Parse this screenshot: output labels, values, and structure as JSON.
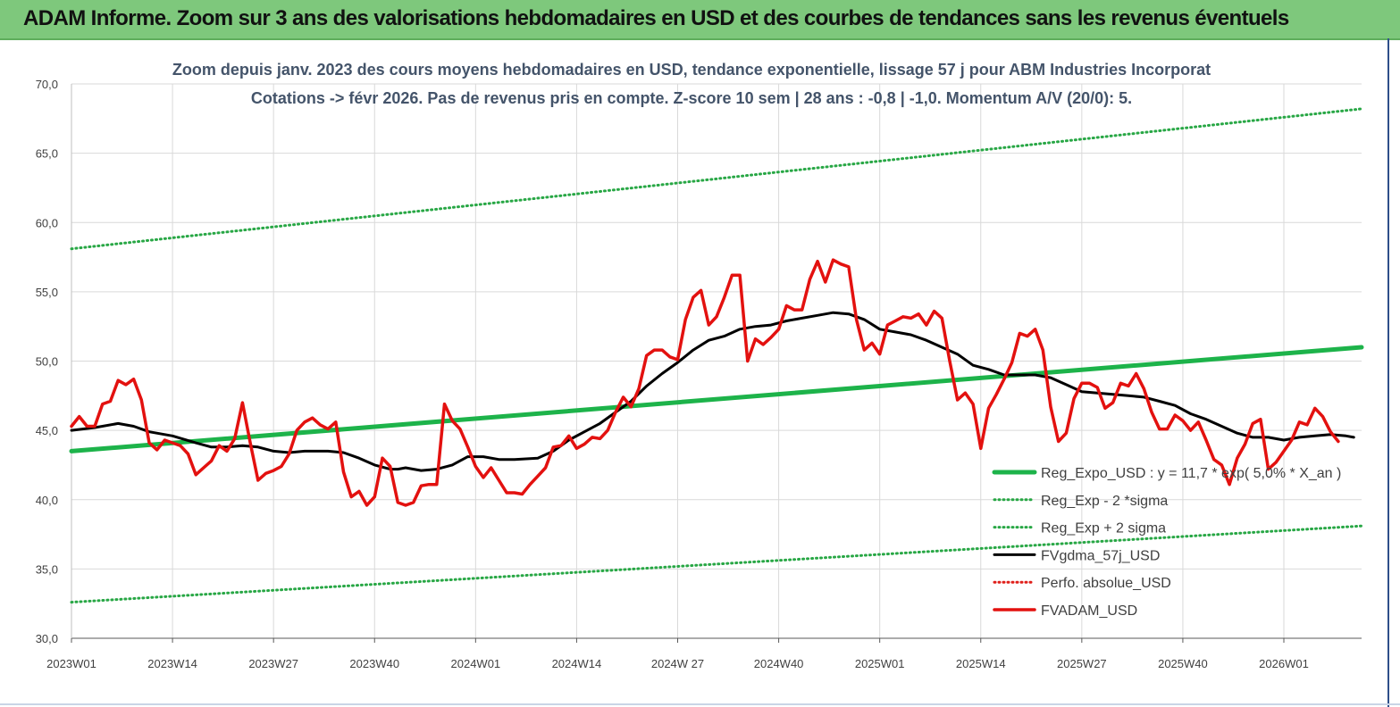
{
  "header": {
    "title": "ADAM Informe. Zoom sur 3 ans des valorisations hebdomadaires en USD et des courbes de tendances sans les revenus éventuels"
  },
  "colors": {
    "banner": "#7ec87c",
    "trend": "#1db34a",
    "sigma": "#28a745",
    "fvgdma": "#000000",
    "perfo": "#e0201b",
    "fvadam": "#e3110f",
    "grid": "#d9d9d9"
  },
  "chart_data": {
    "type": "line",
    "title_lines": [
      "Zoom depuis janv. 2023 des cours moyens hebdomadaires en USD, tendance exponentielle, lissage 57 j pour ABM Industries Incorporat",
      "Cotations -> févr 2026.  Pas de revenus pris en compte. Z-score 10 sem  | 28 ans : -0,8 | -1,0. Momentum A/V (20/0): 5."
    ],
    "ylim": [
      30,
      70
    ],
    "yticks": [
      "30,0",
      "35,0",
      "40,0",
      "45,0",
      "50,0",
      "55,0",
      "60,0",
      "65,0",
      "70,0"
    ],
    "xlim": [
      0,
      166
    ],
    "xticks": [
      {
        "label": "2023W01",
        "x": 0
      },
      {
        "label": "2023W14",
        "x": 13
      },
      {
        "label": "2023W27",
        "x": 26
      },
      {
        "label": "2023W40",
        "x": 39
      },
      {
        "label": "2024W01",
        "x": 52
      },
      {
        "label": "2024W14",
        "x": 65
      },
      {
        "label": "2024W 27",
        "x": 78
      },
      {
        "label": "2024W40",
        "x": 91
      },
      {
        "label": "2025W01",
        "x": 104
      },
      {
        "label": "2025W14",
        "x": 117
      },
      {
        "label": "2025W27",
        "x": 130
      },
      {
        "label": "2025W40",
        "x": 143
      },
      {
        "label": "2026W01",
        "x": 156
      }
    ],
    "series": [
      {
        "name": "Reg_Expo_USD : y = 11,7 * exp( 5,0% *  X_an )",
        "style": "thick-solid",
        "color": "#1db34a",
        "points": [
          [
            0,
            43.5
          ],
          [
            166,
            51.0
          ]
        ]
      },
      {
        "name": "Reg_Exp - 2 *sigma",
        "style": "dotted",
        "color": "#28a745",
        "points": [
          [
            0,
            32.6
          ],
          [
            166,
            38.1
          ]
        ]
      },
      {
        "name": "Reg_Exp + 2 sigma",
        "style": "dotted",
        "color": "#28a745",
        "points": [
          [
            0,
            58.1
          ],
          [
            166,
            68.2
          ]
        ]
      },
      {
        "name": "FVgdma_57j_USD",
        "style": "solid",
        "color": "#000000",
        "points": [
          [
            0,
            45.0
          ],
          [
            3,
            45.2
          ],
          [
            6,
            45.5
          ],
          [
            8,
            45.3
          ],
          [
            10,
            44.9
          ],
          [
            13,
            44.6
          ],
          [
            16,
            44.1
          ],
          [
            18,
            43.8
          ],
          [
            20,
            43.8
          ],
          [
            22,
            43.9
          ],
          [
            24,
            43.8
          ],
          [
            26,
            43.5
          ],
          [
            28,
            43.4
          ],
          [
            30,
            43.5
          ],
          [
            33,
            43.5
          ],
          [
            35,
            43.4
          ],
          [
            37,
            43.0
          ],
          [
            39,
            42.5
          ],
          [
            41,
            42.2
          ],
          [
            42,
            42.2
          ],
          [
            43,
            42.3
          ],
          [
            45,
            42.1
          ],
          [
            47,
            42.2
          ],
          [
            49,
            42.5
          ],
          [
            51,
            43.1
          ],
          [
            53,
            43.1
          ],
          [
            55,
            42.9
          ],
          [
            57,
            42.9
          ],
          [
            60,
            43.0
          ],
          [
            62,
            43.5
          ],
          [
            64,
            44.3
          ],
          [
            66,
            44.9
          ],
          [
            68,
            45.5
          ],
          [
            70,
            46.3
          ],
          [
            72,
            47.1
          ],
          [
            74,
            48.2
          ],
          [
            76,
            49.1
          ],
          [
            78,
            49.9
          ],
          [
            80,
            50.8
          ],
          [
            82,
            51.5
          ],
          [
            84,
            51.8
          ],
          [
            86,
            52.3
          ],
          [
            88,
            52.5
          ],
          [
            90,
            52.6
          ],
          [
            92,
            52.9
          ],
          [
            94,
            53.1
          ],
          [
            96,
            53.3
          ],
          [
            98,
            53.5
          ],
          [
            100,
            53.4
          ],
          [
            102,
            53.0
          ],
          [
            104,
            52.3
          ],
          [
            106,
            52.1
          ],
          [
            108,
            51.9
          ],
          [
            110,
            51.5
          ],
          [
            112,
            51.0
          ],
          [
            114,
            50.5
          ],
          [
            116,
            49.7
          ],
          [
            118,
            49.4
          ],
          [
            120,
            49.0
          ],
          [
            122,
            49.0
          ],
          [
            124,
            49.0
          ],
          [
            126,
            48.8
          ],
          [
            128,
            48.3
          ],
          [
            130,
            47.8
          ],
          [
            132,
            47.7
          ],
          [
            134,
            47.6
          ],
          [
            136,
            47.5
          ],
          [
            138,
            47.4
          ],
          [
            140,
            47.1
          ],
          [
            142,
            46.8
          ],
          [
            144,
            46.2
          ],
          [
            146,
            45.8
          ],
          [
            148,
            45.3
          ],
          [
            150,
            44.8
          ],
          [
            152,
            44.5
          ],
          [
            154,
            44.5
          ],
          [
            156,
            44.3
          ],
          [
            158,
            44.5
          ],
          [
            160,
            44.6
          ],
          [
            162,
            44.7
          ],
          [
            164,
            44.6
          ],
          [
            165,
            44.5
          ]
        ]
      },
      {
        "name": "Perfo. absolue_USD",
        "style": "dotted",
        "color": "#e0201b",
        "points": []
      },
      {
        "name": "FVADAM_USD",
        "style": "solid-thick",
        "color": "#e3110f",
        "points": [
          [
            0,
            45.3
          ],
          [
            1,
            46.0
          ],
          [
            2,
            45.3
          ],
          [
            3,
            45.3
          ],
          [
            4,
            46.9
          ],
          [
            5,
            47.1
          ],
          [
            6,
            48.6
          ],
          [
            7,
            48.3
          ],
          [
            8,
            48.7
          ],
          [
            9,
            47.2
          ],
          [
            10,
            44.1
          ],
          [
            11,
            43.6
          ],
          [
            12,
            44.3
          ],
          [
            13,
            44.1
          ],
          [
            14,
            43.9
          ],
          [
            15,
            43.3
          ],
          [
            16,
            41.8
          ],
          [
            17,
            42.3
          ],
          [
            18,
            42.8
          ],
          [
            19,
            43.9
          ],
          [
            20,
            43.5
          ],
          [
            21,
            44.4
          ],
          [
            22,
            47.0
          ],
          [
            23,
            44.1
          ],
          [
            24,
            41.4
          ],
          [
            25,
            41.9
          ],
          [
            26,
            42.1
          ],
          [
            27,
            42.4
          ],
          [
            28,
            43.3
          ],
          [
            29,
            45.0
          ],
          [
            30,
            45.6
          ],
          [
            31,
            45.9
          ],
          [
            32,
            45.4
          ],
          [
            33,
            45.1
          ],
          [
            34,
            45.6
          ],
          [
            35,
            42.0
          ],
          [
            36,
            40.2
          ],
          [
            37,
            40.6
          ],
          [
            38,
            39.6
          ],
          [
            39,
            40.2
          ],
          [
            40,
            43.0
          ],
          [
            41,
            42.4
          ],
          [
            42,
            39.8
          ],
          [
            43,
            39.6
          ],
          [
            44,
            39.8
          ],
          [
            45,
            41.0
          ],
          [
            46,
            41.1
          ],
          [
            47,
            41.1
          ],
          [
            48,
            46.9
          ],
          [
            49,
            45.7
          ],
          [
            50,
            45.1
          ],
          [
            51,
            43.8
          ],
          [
            52,
            42.4
          ],
          [
            53,
            41.6
          ],
          [
            54,
            42.3
          ],
          [
            55,
            41.4
          ],
          [
            56,
            40.5
          ],
          [
            57,
            40.5
          ],
          [
            58,
            40.4
          ],
          [
            59,
            41.1
          ],
          [
            60,
            41.7
          ],
          [
            61,
            42.3
          ],
          [
            62,
            43.8
          ],
          [
            63,
            43.9
          ],
          [
            64,
            44.6
          ],
          [
            65,
            43.7
          ],
          [
            66,
            44.0
          ],
          [
            67,
            44.5
          ],
          [
            68,
            44.4
          ],
          [
            69,
            45.0
          ],
          [
            70,
            46.3
          ],
          [
            71,
            47.4
          ],
          [
            72,
            46.7
          ],
          [
            73,
            48.0
          ],
          [
            74,
            50.4
          ],
          [
            75,
            50.8
          ],
          [
            76,
            50.8
          ],
          [
            77,
            50.3
          ],
          [
            78,
            50.1
          ],
          [
            79,
            53.0
          ],
          [
            80,
            54.6
          ],
          [
            81,
            55.1
          ],
          [
            82,
            52.6
          ],
          [
            83,
            53.2
          ],
          [
            84,
            54.6
          ],
          [
            85,
            56.2
          ],
          [
            86,
            56.2
          ],
          [
            87,
            50.0
          ],
          [
            88,
            51.6
          ],
          [
            89,
            51.2
          ],
          [
            90,
            51.7
          ],
          [
            91,
            52.3
          ],
          [
            92,
            54.0
          ],
          [
            93,
            53.7
          ],
          [
            94,
            53.7
          ],
          [
            95,
            55.9
          ],
          [
            96,
            57.2
          ],
          [
            97,
            55.7
          ],
          [
            98,
            57.3
          ],
          [
            99,
            57.0
          ],
          [
            100,
            56.8
          ],
          [
            101,
            53.0
          ],
          [
            102,
            50.8
          ],
          [
            103,
            51.3
          ],
          [
            104,
            50.5
          ],
          [
            105,
            52.6
          ],
          [
            106,
            52.9
          ],
          [
            107,
            53.2
          ],
          [
            108,
            53.1
          ],
          [
            109,
            53.4
          ],
          [
            110,
            52.6
          ],
          [
            111,
            53.6
          ],
          [
            112,
            53.1
          ],
          [
            113,
            50.0
          ],
          [
            114,
            47.2
          ],
          [
            115,
            47.7
          ],
          [
            116,
            46.9
          ],
          [
            117,
            43.7
          ],
          [
            118,
            46.6
          ],
          [
            119,
            47.6
          ],
          [
            120,
            48.7
          ],
          [
            121,
            49.9
          ],
          [
            122,
            52.0
          ],
          [
            123,
            51.8
          ],
          [
            124,
            52.3
          ],
          [
            125,
            50.8
          ],
          [
            126,
            46.7
          ],
          [
            127,
            44.2
          ],
          [
            128,
            44.8
          ],
          [
            129,
            47.3
          ],
          [
            130,
            48.4
          ],
          [
            131,
            48.4
          ],
          [
            132,
            48.1
          ],
          [
            133,
            46.6
          ],
          [
            134,
            47.0
          ],
          [
            135,
            48.4
          ],
          [
            136,
            48.2
          ],
          [
            137,
            49.1
          ],
          [
            138,
            48.0
          ],
          [
            139,
            46.3
          ],
          [
            140,
            45.1
          ],
          [
            141,
            45.1
          ],
          [
            142,
            46.1
          ],
          [
            143,
            45.7
          ],
          [
            144,
            45.0
          ],
          [
            145,
            45.6
          ],
          [
            146,
            44.3
          ],
          [
            147,
            42.9
          ],
          [
            148,
            42.5
          ],
          [
            149,
            41.1
          ],
          [
            150,
            43.0
          ],
          [
            151,
            44.0
          ],
          [
            152,
            45.5
          ],
          [
            153,
            45.8
          ],
          [
            154,
            42.2
          ],
          [
            155,
            42.7
          ],
          [
            156,
            43.5
          ],
          [
            157,
            44.3
          ],
          [
            158,
            45.6
          ],
          [
            159,
            45.4
          ],
          [
            160,
            46.6
          ],
          [
            161,
            46.0
          ],
          [
            162,
            44.9
          ],
          [
            163,
            44.2
          ]
        ]
      }
    ]
  }
}
